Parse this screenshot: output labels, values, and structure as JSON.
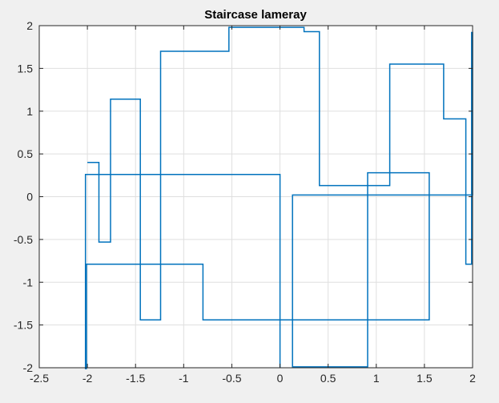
{
  "chart_data": {
    "type": "line",
    "title": "Staircase lameray",
    "xlabel": "",
    "ylabel": "",
    "xlim": [
      -2.5,
      2
    ],
    "ylim": [
      -2,
      2
    ],
    "x_ticks": [
      -2.5,
      -2,
      -1.5,
      -1,
      -0.5,
      0,
      0.5,
      1,
      1.5,
      2
    ],
    "x_tick_labels": [
      "-2.5",
      "-2",
      "-1.5",
      "-1",
      "-0.5",
      "0",
      "0.5",
      "1",
      "1.5",
      "2"
    ],
    "y_ticks": [
      -2,
      -1.5,
      -1,
      -0.5,
      0,
      0.5,
      1,
      1.5,
      2
    ],
    "y_tick_labels": [
      "-2",
      "-1.5",
      "-1",
      "-0.5",
      "0",
      "0.5",
      "1",
      "1.5",
      "2"
    ],
    "grid": true,
    "series": [
      {
        "color": "#0072bd",
        "step": "post",
        "x": [
          -2,
          -1.88,
          -1.76,
          -1.45,
          -1.24,
          -0.53,
          0.25,
          0.41,
          1.14,
          1.7,
          1.93,
          1.99,
          2,
          0.13,
          0.91,
          1.55,
          -0.8,
          -2.01,
          -2.02,
          0
        ],
        "y": [
          0.4,
          -0.53,
          1.14,
          -1.44,
          1.7,
          1.98,
          1.93,
          0.13,
          1.55,
          0.91,
          -0.79,
          1.92,
          0.02,
          -1.99,
          0.28,
          -1.44,
          -0.79,
          -2.01,
          0.26,
          -2
        ]
      }
    ]
  }
}
